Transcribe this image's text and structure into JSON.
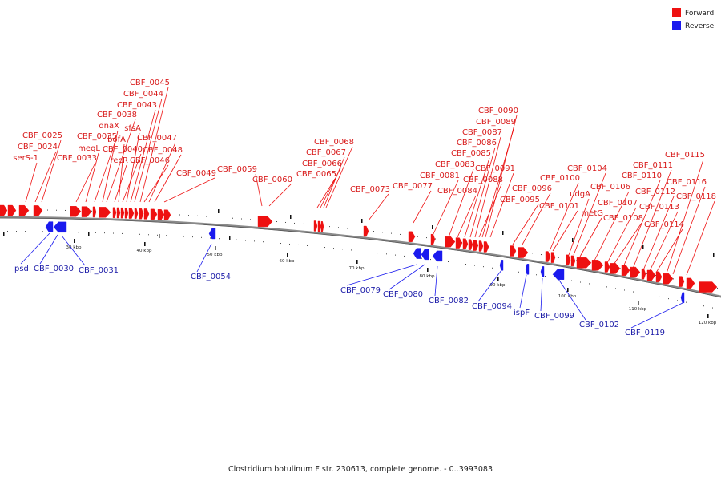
{
  "legend": {
    "forward_label": "Forward",
    "reverse_label": "Reverse",
    "forward_color": "#ee1111",
    "reverse_color": "#1a1aee"
  },
  "caption": "Clostridium botulinum F str. 230613, complete genome. - 0..3993083",
  "axis": {
    "tick_labels": [
      "30 kbp",
      "40 kbp",
      "50 kbp",
      "60 kbp",
      "70 kbp",
      "80 kbp",
      "90 kbp",
      "100 kbp",
      "110 kbp",
      "120 kbp"
    ]
  },
  "forward_genes": [
    "serS-1",
    "CBF_0024",
    "CBF_0025",
    "CBF_0033",
    "megL",
    "CBF_0035",
    "dnaX",
    "CBF_0038",
    "recR",
    "bofA",
    "CBF_0040",
    "sfsA",
    "CBF_0043",
    "CBF_0044",
    "CBF_0045",
    "CBF_0046",
    "CBF_0047",
    "CBF_0048",
    "CBF_0049",
    "CBF_0059",
    "CBF_0060",
    "CBF_0065",
    "CBF_0066",
    "CBF_0067",
    "CBF_0068",
    "CBF_0073",
    "CBF_0077",
    "CBF_0081",
    "CBF_0083",
    "CBF_0084",
    "CBF_0085",
    "CBF_0086",
    "CBF_0087",
    "CBF_0088",
    "CBF_0089",
    "CBF_0090",
    "CBF_0091",
    "CBF_0095",
    "CBF_0096",
    "CBF_0100",
    "CBF_0101",
    "udgA",
    "CBF_0104",
    "metG",
    "CBF_0106",
    "CBF_0107",
    "CBF_0108",
    "CBF_0110",
    "CBF_0111",
    "CBF_0112",
    "CBF_0113",
    "CBF_0114",
    "CBF_0115",
    "CBF_0116",
    "CBF_0118"
  ],
  "reverse_genes": [
    "psd",
    "CBF_0030",
    "CBF_0031",
    "CBF_0054",
    "CBF_0079",
    "CBF_0080",
    "CBF_0082",
    "CBF_0094",
    "ispF",
    "CBF_0099",
    "CBF_0102",
    "CBF_0119"
  ]
}
